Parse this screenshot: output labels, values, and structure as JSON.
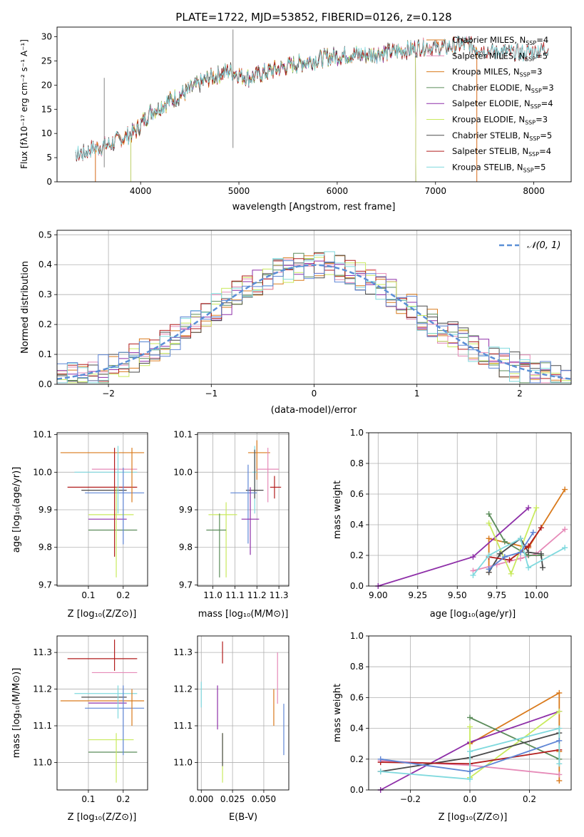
{
  "figure": {
    "title": "PLATE=1722, MJD=53852, FIBERID=0126, z=0.128"
  },
  "colors": {
    "orange": "#d97a1c",
    "sea_green": "#5b8c5a",
    "purple": "#8e2fa8",
    "yellow_green": "#c9ea5e",
    "dark_gray": "#4a4a4a",
    "dark_red": "#b21d1d",
    "light_cyan": "#7fd9de",
    "pink": "#e68ab8",
    "steel_blue": "#5f86d6",
    "gauss": "#5b8fd6"
  },
  "chart_data": [
    {
      "id": "spectrum",
      "type": "line",
      "xlabel": "wavelength [Angstrom, rest frame]",
      "ylabel": "Flux [fλ10⁻¹⁷ erg cm⁻² s⁻¹ A⁻¹]",
      "xlim": [
        3150,
        8380
      ],
      "ylim": [
        0,
        32
      ],
      "xticks": [
        "4000",
        "5000",
        "6000",
        "7000",
        "8000"
      ],
      "yticks": [
        "0",
        "5",
        "10",
        "15",
        "20",
        "25",
        "30"
      ],
      "legend_position": "top-right",
      "continuum": {
        "x": [
          3340,
          3500,
          3650,
          3800,
          3950,
          4100,
          4300,
          4500,
          4700,
          4900,
          5100,
          5300,
          5500,
          5700,
          5900,
          6100,
          6300,
          6500,
          6700,
          6900,
          7100,
          7300,
          7500,
          7700,
          7900,
          8100
        ],
        "y": [
          5.2,
          6.8,
          7.5,
          8.8,
          10.5,
          14.5,
          16.8,
          19.0,
          21.5,
          23.0,
          21.5,
          22.8,
          24.0,
          24.8,
          25.8,
          26.3,
          26.3,
          26.8,
          27.2,
          28.0,
          27.8,
          28.5,
          27.2,
          26.8,
          26.5,
          27.6
        ]
      },
      "series": [
        {
          "name": "Chabrier MILES, N$_{SSP}$=4",
          "label": "Chabrier MILES, N",
          "n": "=4",
          "color": "#d97a1c",
          "xmin": 3540,
          "xmax": 7420
        },
        {
          "name": "Salpeter MILES, N$_{SSP}$=5",
          "label": "Salpeter MILES, N",
          "n": "=5",
          "color": "#e68ab8",
          "xmin": 3540,
          "xmax": 7420
        },
        {
          "name": "Kroupa MILES, N$_{SSP}$=3",
          "label": "Kroupa MILES, N",
          "n": "=3",
          "color": "#d97a1c",
          "xmin": 3540,
          "xmax": 7420
        },
        {
          "name": "Chabrier ELODIE, N$_{SSP}$=3",
          "label": "Chabrier ELODIE, N",
          "n": "=3",
          "color": "#5b8c5a",
          "xmin": 3900,
          "xmax": 6800
        },
        {
          "name": "Salpeter ELODIE, N$_{SSP}$=4",
          "label": "Salpeter ELODIE, N",
          "n": "=4",
          "color": "#8e2fa8",
          "xmin": 3900,
          "xmax": 6800
        },
        {
          "name": "Kroupa ELODIE, N$_{SSP}$=3",
          "label": "Kroupa ELODIE, N",
          "n": "=3",
          "color": "#c9ea5e",
          "xmin": 3900,
          "xmax": 6800
        },
        {
          "name": "Chabrier STELIB, N$_{SSP}$=5",
          "label": "Chabrier STELIB, N",
          "n": "=5",
          "color": "#4a4a4a",
          "xmin": 3340,
          "xmax": 8150
        },
        {
          "name": "Salpeter STELIB, N$_{SSP}$=4",
          "label": "Salpeter STELIB, N",
          "n": "=4",
          "color": "#b21d1d",
          "xmin": 3340,
          "xmax": 8150
        },
        {
          "name": "Kroupa STELIB, N$_{SSP}$=5",
          "label": "Kroupa STELIB, N",
          "n": "=5",
          "color": "#7fd9de",
          "xmin": 3340,
          "xmax": 8150
        }
      ]
    },
    {
      "id": "residuals",
      "type": "line",
      "xlabel": "(data-model)/error",
      "ylabel": "Normed distribution",
      "xlim": [
        -2.5,
        2.5
      ],
      "ylim": [
        0,
        0.515
      ],
      "xticks": [
        "−2",
        "−1",
        "0",
        "1",
        "2"
      ],
      "yticks": [
        "0.0",
        "0.1",
        "0.2",
        "0.3",
        "0.4",
        "0.5"
      ],
      "legend_position": "top-right",
      "gauss_label": "𝒩(0, 1)",
      "bin_width": 0.1,
      "series_colors": [
        "#d97a1c",
        "#e68ab8",
        "#5b8c5a",
        "#8e2fa8",
        "#c9ea5e",
        "#4a4a4a",
        "#b21d1d",
        "#7fd9de",
        "#5f86d6"
      ]
    },
    {
      "id": "age_Z",
      "type": "scatter",
      "xlabel": "Z [log₁₀(Z/Z⊙)]",
      "ylabel": "age  [log₁₀(age/yr)]",
      "xlim": [
        0.01,
        0.27
      ],
      "ylim": [
        9.697,
        10.105
      ],
      "xticks": [
        "0.1",
        "0.2"
      ],
      "yticks": [
        "9.7",
        "9.8",
        "9.9",
        "10.0",
        "10.1"
      ],
      "points": [
        {
          "x": 0.145,
          "y": 10.052,
          "xlo": 0.02,
          "xhi": 0.26,
          "ylo": 10.052,
          "yhi": 10.052,
          "color": "#d97a1c"
        },
        {
          "x": 0.17,
          "y": 10.008,
          "xlo": 0.11,
          "xhi": 0.24,
          "ylo": 10.008,
          "yhi": 10.008,
          "color": "#e68ab8"
        },
        {
          "x": 0.14,
          "y": 10.0,
          "xlo": 0.06,
          "xhi": 0.24,
          "ylo": 10.0,
          "yhi": 10.0,
          "color": "#7fd9de"
        },
        {
          "x": 0.14,
          "y": 9.96,
          "xlo": 0.04,
          "xhi": 0.24,
          "ylo": 9.96,
          "yhi": 9.96,
          "color": "#b21d1d"
        },
        {
          "x": 0.18,
          "y": 9.952,
          "xlo": 0.08,
          "xhi": 0.21,
          "ylo": 9.952,
          "yhi": 9.952,
          "color": "#4a4a4a"
        },
        {
          "x": 0.2,
          "y": 9.945,
          "xlo": 0.09,
          "xhi": 0.26,
          "ylo": 9.945,
          "yhi": 9.945,
          "color": "#5f86d6"
        },
        {
          "x": 0.16,
          "y": 9.887,
          "xlo": 0.1,
          "xhi": 0.23,
          "ylo": 9.887,
          "yhi": 9.887,
          "color": "#c9ea5e"
        },
        {
          "x": 0.15,
          "y": 9.875,
          "xlo": 0.1,
          "xhi": 0.21,
          "ylo": 9.875,
          "yhi": 9.875,
          "color": "#8e2fa8"
        },
        {
          "x": 0.17,
          "y": 9.846,
          "xlo": 0.1,
          "xhi": 0.24,
          "ylo": 9.846,
          "yhi": 9.846,
          "color": "#5b8c5a"
        },
        {
          "x": 0.175,
          "y": 9.95,
          "xlo": 0.175,
          "xhi": 0.175,
          "ylo": 9.775,
          "yhi": 10.065,
          "color": "#b21d1d"
        },
        {
          "x": 0.2,
          "y": 9.95,
          "xlo": 0.2,
          "xhi": 0.2,
          "ylo": 9.808,
          "yhi": 10.012,
          "color": "#5f86d6"
        },
        {
          "x": 0.18,
          "y": 9.85,
          "xlo": 0.18,
          "xhi": 0.18,
          "ylo": 9.72,
          "yhi": 9.96,
          "color": "#c9ea5e"
        },
        {
          "x": 0.225,
          "y": 9.98,
          "xlo": 0.225,
          "xhi": 0.225,
          "ylo": 9.92,
          "yhi": 10.065,
          "color": "#d97a1c"
        },
        {
          "x": 0.185,
          "y": 9.98,
          "xlo": 0.185,
          "xhi": 0.185,
          "ylo": 9.89,
          "yhi": 10.07,
          "color": "#7fd9de"
        }
      ]
    },
    {
      "id": "age_mass",
      "type": "scatter",
      "xlabel": "mass [log₁₀(M/M⊙)]",
      "xlim": [
        10.93,
        11.345
      ],
      "ylim": [
        9.697,
        10.105
      ],
      "xticks": [
        "11.0",
        "11.1",
        "11.2",
        "11.3"
      ],
      "yticks": [
        "9.7",
        "9.8",
        "9.9",
        "10.0",
        "10.1"
      ],
      "points": [
        {
          "x": 11.2,
          "y": 10.052,
          "xlo": 11.16,
          "xhi": 11.26,
          "ylo": 9.98,
          "yhi": 10.085,
          "color": "#d97a1c"
        },
        {
          "x": 11.25,
          "y": 10.008,
          "xlo": 11.2,
          "xhi": 11.3,
          "ylo": 9.92,
          "yhi": 10.065,
          "color": "#e68ab8"
        },
        {
          "x": 11.19,
          "y": 10.0,
          "xlo": 11.18,
          "xhi": 11.2,
          "ylo": 9.89,
          "yhi": 10.07,
          "color": "#7fd9de"
        },
        {
          "x": 11.28,
          "y": 9.96,
          "xlo": 11.26,
          "xhi": 11.31,
          "ylo": 9.93,
          "yhi": 9.99,
          "color": "#b21d1d"
        },
        {
          "x": 11.19,
          "y": 9.952,
          "xlo": 11.15,
          "xhi": 11.23,
          "ylo": 9.93,
          "yhi": 10.06,
          "color": "#4a4a4a"
        },
        {
          "x": 11.16,
          "y": 9.945,
          "xlo": 11.08,
          "xhi": 11.2,
          "ylo": 9.81,
          "yhi": 10.02,
          "color": "#5f86d6"
        },
        {
          "x": 11.06,
          "y": 9.887,
          "xlo": 10.98,
          "xhi": 11.11,
          "ylo": 9.72,
          "yhi": 9.92,
          "color": "#c9ea5e"
        },
        {
          "x": 11.17,
          "y": 9.875,
          "xlo": 11.13,
          "xhi": 11.21,
          "ylo": 9.78,
          "yhi": 9.96,
          "color": "#8e2fa8"
        },
        {
          "x": 11.03,
          "y": 9.846,
          "xlo": 10.97,
          "xhi": 11.06,
          "ylo": 9.72,
          "yhi": 9.89,
          "color": "#5b8c5a"
        }
      ]
    },
    {
      "id": "weights_age",
      "type": "line",
      "xlabel": "age  [log₁₀(age/yr)]",
      "ylabel": "mass weight",
      "xlim": [
        8.94,
        10.22
      ],
      "ylim": [
        0,
        1.0
      ],
      "xticks": [
        "9.00",
        "9.25",
        "9.50",
        "9.75",
        "10.00"
      ],
      "yticks": [
        "0.0",
        "0.2",
        "0.4",
        "0.6",
        "0.8",
        "1.0"
      ],
      "series": [
        {
          "color": "#d97a1c",
          "x": [
            9.7,
            9.7,
            9.95,
            10.18
          ],
          "y": [
            0.09,
            0.31,
            0.25,
            0.63
          ]
        },
        {
          "color": "#e68ab8",
          "x": [
            9.6,
            9.75,
            9.9,
            10.0,
            10.18
          ],
          "y": [
            0.1,
            0.14,
            0.18,
            0.21,
            0.37
          ]
        },
        {
          "color": "#5b8c5a",
          "x": [
            9.7,
            9.8,
            9.95,
            10.03
          ],
          "y": [
            0.47,
            0.29,
            0.2,
            0.2
          ]
        },
        {
          "color": "#8e2fa8",
          "x": [
            9.0,
            9.6,
            9.95
          ],
          "y": [
            0.0,
            0.19,
            0.51
          ]
        },
        {
          "color": "#c9ea5e",
          "x": [
            9.7,
            9.84,
            10.0
          ],
          "y": [
            0.41,
            0.08,
            0.51
          ]
        },
        {
          "color": "#4a4a4a",
          "x": [
            9.7,
            9.77,
            9.9,
            9.95,
            10.03,
            10.04
          ],
          "y": [
            0.09,
            0.21,
            0.31,
            0.22,
            0.21,
            0.12
          ]
        },
        {
          "color": "#b21d1d",
          "x": [
            9.7,
            9.83,
            9.95,
            10.03
          ],
          "y": [
            0.19,
            0.17,
            0.26,
            0.38
          ]
        },
        {
          "color": "#7fd9de",
          "x": [
            9.6,
            9.7,
            9.9,
            9.95,
            10.18
          ],
          "y": [
            0.07,
            0.2,
            0.31,
            0.12,
            0.25
          ]
        },
        {
          "color": "#5f86d6",
          "x": [
            9.7,
            9.8,
            9.9,
            9.98
          ],
          "y": [
            0.11,
            0.19,
            0.22,
            0.35
          ]
        }
      ]
    },
    {
      "id": "mass_Z",
      "type": "scatter",
      "xlabel": "Z [log₁₀(Z/Z⊙)]",
      "ylabel": "mass [log₁₀(M/M⊙)]",
      "xlim": [
        0.01,
        0.27
      ],
      "ylim": [
        10.925,
        11.345
      ],
      "xticks": [
        "0.1",
        "0.2"
      ],
      "yticks": [
        "11.0",
        "11.1",
        "11.2",
        "11.3"
      ],
      "points": [
        {
          "x": 0.145,
          "y": 11.283,
          "xlo": 0.04,
          "xhi": 0.24,
          "ylo": 11.283,
          "yhi": 11.283,
          "color": "#b21d1d"
        },
        {
          "x": 0.17,
          "y": 11.245,
          "xlo": 0.11,
          "xhi": 0.24,
          "ylo": 11.245,
          "yhi": 11.245,
          "color": "#e68ab8"
        },
        {
          "x": 0.14,
          "y": 11.188,
          "xlo": 0.06,
          "xhi": 0.24,
          "ylo": 11.188,
          "yhi": 11.188,
          "color": "#7fd9de"
        },
        {
          "x": 0.18,
          "y": 11.178,
          "xlo": 0.08,
          "xhi": 0.21,
          "ylo": 11.178,
          "yhi": 11.178,
          "color": "#4a4a4a"
        },
        {
          "x": 0.145,
          "y": 11.168,
          "xlo": 0.02,
          "xhi": 0.26,
          "ylo": 11.168,
          "yhi": 11.168,
          "color": "#d97a1c"
        },
        {
          "x": 0.15,
          "y": 11.162,
          "xlo": 0.1,
          "xhi": 0.21,
          "ylo": 11.162,
          "yhi": 11.162,
          "color": "#8e2fa8"
        },
        {
          "x": 0.2,
          "y": 11.148,
          "xlo": 0.09,
          "xhi": 0.26,
          "ylo": 11.148,
          "yhi": 11.148,
          "color": "#5f86d6"
        },
        {
          "x": 0.16,
          "y": 11.062,
          "xlo": 0.1,
          "xhi": 0.23,
          "ylo": 11.062,
          "yhi": 11.062,
          "color": "#c9ea5e"
        },
        {
          "x": 0.17,
          "y": 11.028,
          "xlo": 0.1,
          "xhi": 0.24,
          "ylo": 11.028,
          "yhi": 11.028,
          "color": "#5b8c5a"
        },
        {
          "x": 0.175,
          "y": 11.28,
          "xlo": 0.175,
          "xhi": 0.175,
          "ylo": 11.25,
          "yhi": 11.335,
          "color": "#b21d1d"
        },
        {
          "x": 0.2,
          "y": 11.15,
          "xlo": 0.2,
          "xhi": 0.2,
          "ylo": 11.02,
          "yhi": 11.21,
          "color": "#5f86d6"
        },
        {
          "x": 0.18,
          "y": 11.06,
          "xlo": 0.18,
          "xhi": 0.18,
          "ylo": 10.945,
          "yhi": 11.08,
          "color": "#c9ea5e"
        },
        {
          "x": 0.225,
          "y": 11.168,
          "xlo": 0.225,
          "xhi": 0.225,
          "ylo": 11.1,
          "yhi": 11.2,
          "color": "#d97a1c"
        },
        {
          "x": 0.185,
          "y": 11.188,
          "xlo": 0.185,
          "xhi": 0.185,
          "ylo": 11.12,
          "yhi": 11.21,
          "color": "#7fd9de"
        }
      ]
    },
    {
      "id": "mass_ebv",
      "type": "scatter",
      "xlabel": "E(B-V)",
      "xlim": [
        -0.003,
        0.07
      ],
      "ylim": [
        10.925,
        11.345
      ],
      "xticks": [
        "0.000",
        "0.025",
        "0.050"
      ],
      "yticks": [
        "11.0",
        "11.1",
        "11.2",
        "11.3"
      ],
      "points": [
        {
          "x": 0.0,
          "y": 11.19,
          "xlo": 0.0,
          "xhi": 0.0,
          "ylo": 11.15,
          "yhi": 11.22,
          "color": "#7fd9de"
        },
        {
          "x": 0.013,
          "y": 11.15,
          "xlo": 0.013,
          "xhi": 0.013,
          "ylo": 11.09,
          "yhi": 11.21,
          "color": "#8e2fa8"
        },
        {
          "x": 0.017,
          "y": 11.3,
          "xlo": 0.017,
          "xhi": 0.017,
          "ylo": 11.27,
          "yhi": 11.33,
          "color": "#b21d1d"
        },
        {
          "x": 0.017,
          "y": 11.02,
          "xlo": 0.017,
          "xhi": 0.017,
          "ylo": 10.945,
          "yhi": 11.08,
          "color": "#c9ea5e"
        },
        {
          "x": 0.017,
          "y": 11.02,
          "xlo": 0.017,
          "xhi": 0.017,
          "ylo": 10.99,
          "yhi": 11.08,
          "color": "#4a4a4a"
        },
        {
          "x": 0.058,
          "y": 11.15,
          "xlo": 0.058,
          "xhi": 0.058,
          "ylo": 11.1,
          "yhi": 11.2,
          "color": "#d97a1c"
        },
        {
          "x": 0.061,
          "y": 11.23,
          "xlo": 0.061,
          "xhi": 0.061,
          "ylo": 11.16,
          "yhi": 11.3,
          "color": "#e68ab8"
        },
        {
          "x": 0.066,
          "y": 11.09,
          "xlo": 0.066,
          "xhi": 0.066,
          "ylo": 11.02,
          "yhi": 11.16,
          "color": "#5f86d6"
        }
      ]
    },
    {
      "id": "weights_Z",
      "type": "line",
      "xlabel": "Z [log₁₀(Z/Z⊙)]",
      "ylabel": "mass weight",
      "xlim": [
        -0.34,
        0.34
      ],
      "ylim": [
        0,
        1.0
      ],
      "xticks": [
        "−0.2",
        "0.0",
        "0.2"
      ],
      "yticks": [
        "0.0",
        "0.2",
        "0.4",
        "0.6",
        "0.8",
        "1.0"
      ],
      "series": [
        {
          "color": "#d97a1c",
          "x": [
            0.0,
            0.3,
            0.3,
            0.3
          ],
          "y": [
            0.3,
            0.63,
            0.25,
            0.06
          ]
        },
        {
          "color": "#e68ab8",
          "x": [
            -0.3,
            0.0,
            0.3
          ],
          "y": [
            0.19,
            0.16,
            0.1
          ]
        },
        {
          "color": "#5b8c5a",
          "x": [
            0.0,
            0.3
          ],
          "y": [
            0.47,
            0.2
          ]
        },
        {
          "color": "#8e2fa8",
          "x": [
            -0.3,
            0.0,
            0.3
          ],
          "y": [
            0.0,
            0.31,
            0.51
          ]
        },
        {
          "color": "#c9ea5e",
          "x": [
            0.0,
            0.0,
            0.3
          ],
          "y": [
            0.41,
            0.08,
            0.51
          ]
        },
        {
          "color": "#4a4a4a",
          "x": [
            -0.3,
            0.0,
            0.3
          ],
          "y": [
            0.12,
            0.21,
            0.37
          ]
        },
        {
          "color": "#b21d1d",
          "x": [
            -0.3,
            0.0,
            0.3
          ],
          "y": [
            0.18,
            0.17,
            0.26
          ]
        },
        {
          "color": "#7fd9de",
          "x": [
            -0.3,
            0.0,
            0.0,
            0.3,
            0.3
          ],
          "y": [
            0.12,
            0.07,
            0.25,
            0.4,
            0.17
          ]
        },
        {
          "color": "#5f86d6",
          "x": [
            -0.3,
            0.0,
            0.3
          ],
          "y": [
            0.2,
            0.12,
            0.32
          ]
        }
      ]
    }
  ]
}
